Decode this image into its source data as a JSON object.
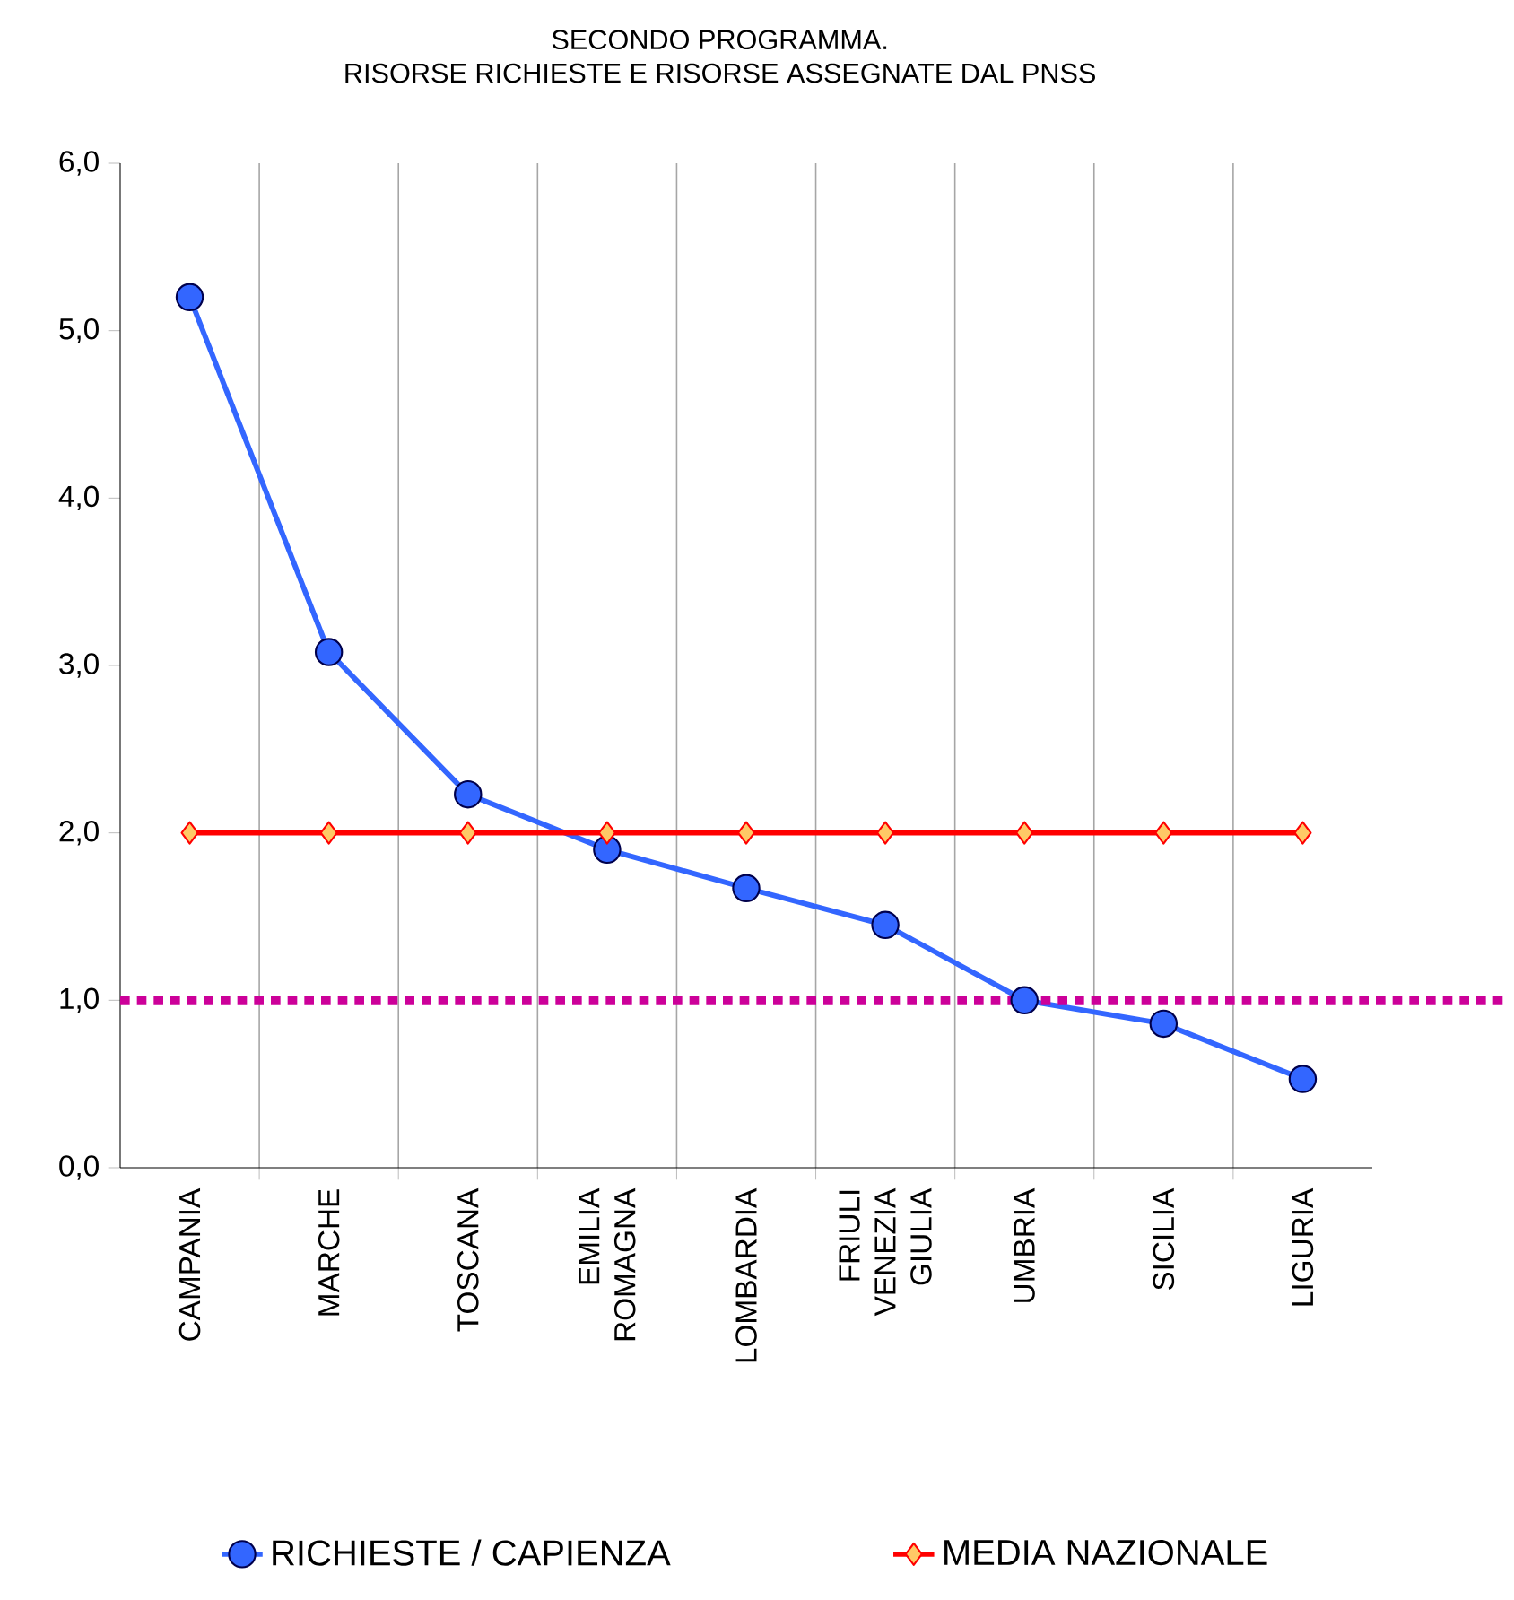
{
  "chart_data": {
    "type": "line",
    "title": "SECONDO PROGRAMMA.",
    "subtitle": "RISORSE RICHIESTE E RISORSE ASSEGNATE DAL PNSS",
    "categories": [
      "CAMPANIA",
      "MARCHE",
      "TOSCANA",
      "EMILIA ROMAGNA",
      "LOMBARDIA",
      "FRIULI VENEZIA GIULIA",
      "UMBRIA",
      "SICILIA",
      "LIGURIA"
    ],
    "series": [
      {
        "name": "RICHIESTE / CAPIENZA",
        "color": "#3366ff",
        "marker": "circle",
        "values": [
          5.2,
          3.08,
          2.23,
          1.9,
          1.67,
          1.45,
          1.0,
          0.86,
          0.53
        ]
      },
      {
        "name": "MEDIA NAZIONALE",
        "color": "#ff0000",
        "marker": "diamond",
        "values": [
          2.0,
          2.0,
          2.0,
          2.0,
          2.0,
          2.0,
          2.0,
          2.0,
          2.0
        ]
      }
    ],
    "ylim": [
      0,
      6
    ],
    "yticks": [
      {
        "value": 0,
        "label": "0,0"
      },
      {
        "value": 1,
        "label": "1,0"
      },
      {
        "value": 2,
        "label": "2,0"
      },
      {
        "value": 3,
        "label": "3,0"
      },
      {
        "value": 4,
        "label": "4,0"
      },
      {
        "value": 5,
        "label": "5,0"
      },
      {
        "value": 6,
        "label": "6,0"
      }
    ],
    "ref_lines": [
      {
        "axis": "y",
        "value": 1,
        "color": "#cc0099",
        "line_style": "dotted"
      }
    ],
    "grid": "x",
    "legend": "bottom",
    "line_style": "solid"
  }
}
